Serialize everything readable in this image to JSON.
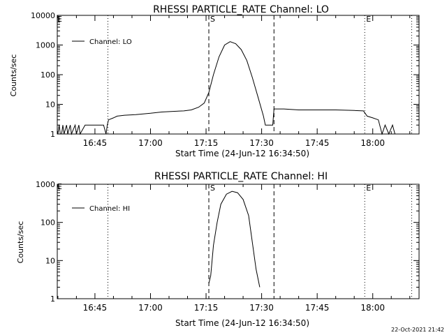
{
  "footer_timestamp": "22-Oct-2021 21:42",
  "chart_data": [
    {
      "type": "line",
      "title": "RHESSI PARTICLE_RATE Channel: LO",
      "xlabel": "Start Time (24-Jun-12 16:34:50)",
      "ylabel": "Counts/sec",
      "y_scale": "log",
      "ylim": [
        1,
        10000
      ],
      "xlim": [
        "16:34:50",
        "18:12:30"
      ],
      "x_ticks": [
        "16:45",
        "17:00",
        "17:15",
        "17:30",
        "17:45",
        "18:00"
      ],
      "y_ticks": [
        "1",
        "10",
        "100",
        "1000",
        "10000"
      ],
      "legend": {
        "label": "Channel: LO",
        "position": "top-left"
      },
      "markers": [
        {
          "label": "",
          "time": "16:48:30",
          "style": "dotted"
        },
        {
          "label": "S",
          "time": "17:15:45",
          "style": "dashed"
        },
        {
          "label": "",
          "time": "17:33:20",
          "style": "dashed"
        },
        {
          "label": "E",
          "time": "17:57:50",
          "style": "dotted"
        },
        {
          "label": "",
          "time": "18:10:30",
          "style": "dotted"
        }
      ],
      "corner_mark": "E",
      "series": [
        {
          "values": [
            [
              "16:35:00",
              1
            ],
            [
              "16:35:20",
              2
            ],
            [
              "16:35:40",
              1
            ],
            [
              "16:36:00",
              1
            ],
            [
              "16:36:20",
              2
            ],
            [
              "16:36:40",
              1
            ],
            [
              "16:37:20",
              2
            ],
            [
              "16:37:40",
              1
            ],
            [
              "16:38:20",
              2
            ],
            [
              "16:38:40",
              1
            ],
            [
              "16:39:40",
              2
            ],
            [
              "16:40:00",
              1
            ],
            [
              "16:40:40",
              2
            ],
            [
              "16:41:00",
              1
            ],
            [
              "16:42:20",
              2
            ],
            [
              "16:42:40",
              2
            ],
            [
              "16:43:40",
              2
            ],
            [
              "16:45:00",
              2
            ],
            [
              "16:46:20",
              2
            ],
            [
              "16:47:20",
              2
            ],
            [
              "16:48:00",
              1
            ],
            [
              "16:48:20",
              2
            ],
            [
              "16:48:40",
              3
            ],
            [
              "16:50:00",
              3.5
            ],
            [
              "16:51:00",
              4
            ],
            [
              "16:53:00",
              4.3
            ],
            [
              "16:56:00",
              4.5
            ],
            [
              "17:00:00",
              5
            ],
            [
              "17:03:00",
              5.5
            ],
            [
              "17:06:00",
              5.8
            ],
            [
              "17:09:00",
              6
            ],
            [
              "17:11:00",
              6.5
            ],
            [
              "17:13:00",
              8
            ],
            [
              "17:14:30",
              11
            ],
            [
              "17:15:45",
              25
            ],
            [
              "17:17:00",
              100
            ],
            [
              "17:18:30",
              400
            ],
            [
              "17:20:00",
              1000
            ],
            [
              "17:21:30",
              1300
            ],
            [
              "17:23:00",
              1100
            ],
            [
              "17:24:30",
              700
            ],
            [
              "17:26:00",
              300
            ],
            [
              "17:27:30",
              80
            ],
            [
              "17:29:00",
              18
            ],
            [
              "17:30:30",
              4
            ],
            [
              "17:31:00",
              2
            ],
            [
              "17:33:00",
              2
            ],
            [
              "17:33:20",
              7
            ],
            [
              "17:36:00",
              7
            ],
            [
              "17:40:00",
              6.5
            ],
            [
              "17:45:00",
              6.5
            ],
            [
              "17:50:00",
              6.5
            ],
            [
              "17:55:00",
              6.2
            ],
            [
              "17:57:30",
              6
            ],
            [
              "17:58:30",
              4
            ],
            [
              "18:00:00",
              3.5
            ],
            [
              "18:01:30",
              3
            ],
            [
              "18:02:30",
              1
            ],
            [
              "18:03:20",
              2
            ],
            [
              "18:04:20",
              1
            ],
            [
              "18:05:20",
              2
            ],
            [
              "18:06:00",
              1
            ],
            [
              "18:07:00",
              1
            ]
          ]
        }
      ]
    },
    {
      "type": "line",
      "title": "RHESSI PARTICLE_RATE Channel: HI",
      "xlabel": "Start Time (24-Jun-12 16:34:50)",
      "ylabel": "Counts/sec",
      "y_scale": "log",
      "ylim": [
        1,
        1000
      ],
      "xlim": [
        "16:34:50",
        "18:12:30"
      ],
      "x_ticks": [
        "16:45",
        "17:00",
        "17:15",
        "17:30",
        "17:45",
        "18:00"
      ],
      "y_ticks": [
        "1",
        "10",
        "100",
        "1000"
      ],
      "legend": {
        "label": "Channel: HI",
        "position": "top-left"
      },
      "markers": [
        {
          "label": "",
          "time": "16:48:30",
          "style": "dotted"
        },
        {
          "label": "S",
          "time": "17:15:45",
          "style": "dashed"
        },
        {
          "label": "",
          "time": "17:33:20",
          "style": "dashed"
        },
        {
          "label": "E",
          "time": "17:57:50",
          "style": "dotted"
        },
        {
          "label": "",
          "time": "18:10:30",
          "style": "dotted"
        }
      ],
      "corner_mark": "E",
      "series": [
        {
          "values": [
            [
              "17:15:45",
              2.5
            ],
            [
              "17:16:15",
              4
            ],
            [
              "17:17:00",
              25
            ],
            [
              "17:18:00",
              100
            ],
            [
              "17:19:00",
              300
            ],
            [
              "17:20:30",
              550
            ],
            [
              "17:22:00",
              650
            ],
            [
              "17:23:30",
              600
            ],
            [
              "17:25:00",
              400
            ],
            [
              "17:26:30",
              150
            ],
            [
              "17:27:30",
              30
            ],
            [
              "17:28:30",
              6
            ],
            [
              "17:29:30",
              2
            ]
          ]
        }
      ]
    }
  ]
}
